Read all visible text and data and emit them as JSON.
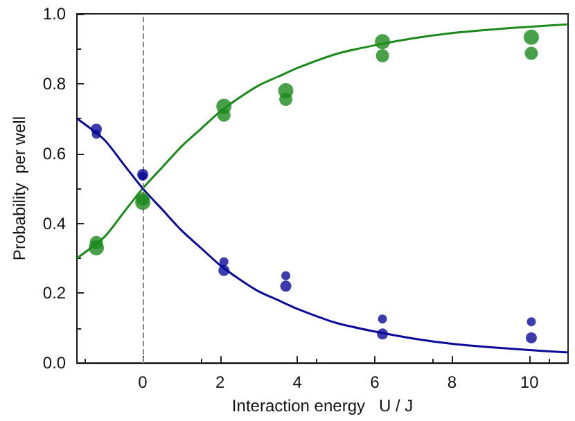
{
  "chart_data": {
    "type": "scatter",
    "xlabel": "Interaction energy   U / J",
    "ylabel": "Probability  per well",
    "xlim": [
      -1.7,
      11
    ],
    "xticks": [
      0,
      2,
      4,
      6,
      8,
      10
    ],
    "ylim": [
      0,
      1
    ],
    "yticks": [
      {
        "value": 0,
        "label": "0.0"
      },
      0.2,
      0.4,
      0.6,
      0.8,
      {
        "value": 1,
        "label": "1.0"
      }
    ],
    "grid": false,
    "marker": "circle",
    "x": [
      -1.2,
      0,
      2.1,
      3.7,
      6.2,
      10.05
    ],
    "series": [
      {
        "color": "#1a8a1a",
        "values": [
          0.33,
          0.46,
          0.735,
          0.78,
          0.92,
          0.933
        ]
      },
      {
        "color": "#1a8a1a",
        "values": [
          0.345,
          0.47,
          0.71,
          0.755,
          0.88,
          0.887
        ]
      },
      {
        "color": "#0a0a9a",
        "values": [
          0.67,
          0.54,
          0.265,
          0.22,
          0.083,
          0.072
        ]
      },
      {
        "color": "#0a0a9a",
        "values": [
          0.655,
          0.535,
          0.29,
          0.25,
          0.126,
          0.118
        ]
      },
      {
        "type": "line",
        "marker": "none",
        "color": "#1a8a1a",
        "x": [
          -1.7,
          -1,
          -0.5,
          0,
          0.5,
          1,
          1.5,
          2,
          2.5,
          3,
          3.5,
          4,
          5,
          6,
          7,
          8,
          9,
          10,
          11
        ],
        "values": [
          0.3,
          0.36,
          0.43,
          0.5,
          0.56,
          0.62,
          0.67,
          0.72,
          0.76,
          0.795,
          0.82,
          0.845,
          0.885,
          0.91,
          0.93,
          0.945,
          0.955,
          0.963,
          0.97
        ]
      },
      {
        "type": "line",
        "marker": "none",
        "color": "#0a0a9a",
        "x": [
          -1.7,
          -1,
          -0.5,
          0,
          0.5,
          1,
          1.5,
          2,
          2.5,
          3,
          3.5,
          4,
          5,
          6,
          7,
          8,
          9,
          10,
          11
        ],
        "values": [
          0.7,
          0.64,
          0.57,
          0.5,
          0.44,
          0.38,
          0.33,
          0.28,
          0.24,
          0.205,
          0.18,
          0.155,
          0.115,
          0.09,
          0.07,
          0.055,
          0.045,
          0.037,
          0.03
        ]
      }
    ],
    "ref_lines": [
      {
        "axis": "x",
        "value": 0,
        "color": "#888888",
        "line_style": "dashed"
      }
    ]
  }
}
